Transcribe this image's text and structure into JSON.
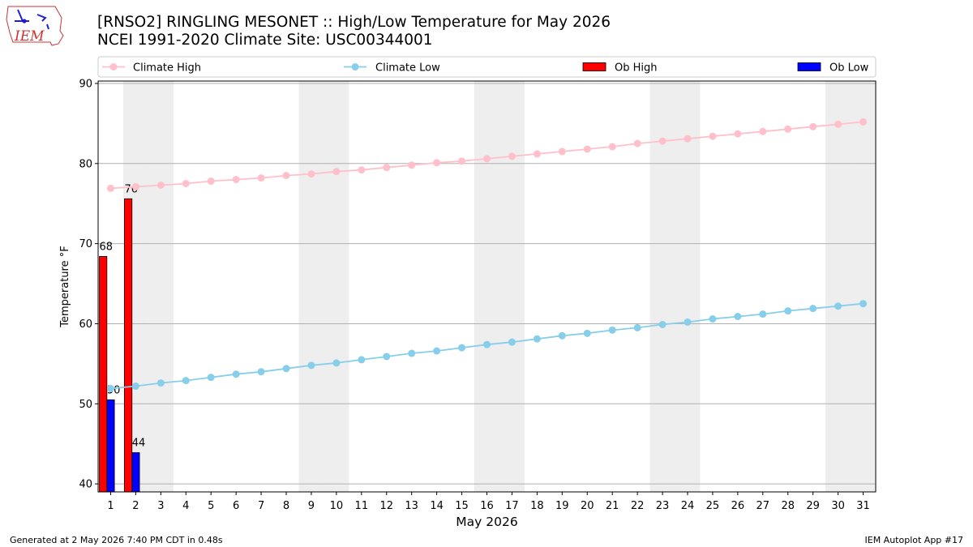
{
  "title": {
    "line1": "[RNSO2] RINGLING MESONET :: High/Low Temperature for May 2026",
    "line2": "NCEI 1991-2020 Climate Site: USC00344001"
  },
  "logo_text": "IEM",
  "footer": {
    "left": "Generated at 2 May 2026 7:40 PM CDT in 0.48s",
    "right": "IEM Autoplot App #17"
  },
  "colors": {
    "climate_high": "#ffc0cb",
    "climate_low": "#87ceeb",
    "ob_high": "#ff0000",
    "ob_low": "#0000ff",
    "weekend_band": "#eeeeee",
    "grid": "#b0b0b0"
  },
  "chart_data": {
    "type": "bar",
    "xlabel": "May 2026",
    "ylabel": "Temperature °F",
    "ylim": [
      39,
      90.3
    ],
    "xlim": [
      0.5,
      31.5
    ],
    "yticks": [
      40,
      50,
      60,
      70,
      80,
      90
    ],
    "xticks": [
      1,
      2,
      3,
      4,
      5,
      6,
      7,
      8,
      9,
      10,
      11,
      12,
      13,
      14,
      15,
      16,
      17,
      18,
      19,
      20,
      21,
      22,
      23,
      24,
      25,
      26,
      27,
      28,
      29,
      30,
      31
    ],
    "grid": "horizontal",
    "legend_position": "top",
    "weekend_days": [
      2,
      3,
      9,
      10,
      16,
      17,
      23,
      24,
      30,
      31
    ],
    "series": [
      {
        "name": "Climate High",
        "kind": "line",
        "x": [
          1,
          2,
          3,
          4,
          5,
          6,
          7,
          8,
          9,
          10,
          11,
          12,
          13,
          14,
          15,
          16,
          17,
          18,
          19,
          20,
          21,
          22,
          23,
          24,
          25,
          26,
          27,
          28,
          29,
          30,
          31
        ],
        "values": [
          76.9,
          77.1,
          77.3,
          77.5,
          77.8,
          78.0,
          78.2,
          78.5,
          78.7,
          79.0,
          79.2,
          79.5,
          79.8,
          80.1,
          80.3,
          80.6,
          80.9,
          81.2,
          81.5,
          81.8,
          82.1,
          82.5,
          82.8,
          83.1,
          83.4,
          83.7,
          84.0,
          84.3,
          84.6,
          84.9,
          85.2
        ]
      },
      {
        "name": "Climate Low",
        "kind": "line",
        "x": [
          1,
          2,
          3,
          4,
          5,
          6,
          7,
          8,
          9,
          10,
          11,
          12,
          13,
          14,
          15,
          16,
          17,
          18,
          19,
          20,
          21,
          22,
          23,
          24,
          25,
          26,
          27,
          28,
          29,
          30,
          31
        ],
        "values": [
          51.9,
          52.2,
          52.6,
          52.9,
          53.3,
          53.7,
          54.0,
          54.4,
          54.8,
          55.1,
          55.5,
          55.9,
          56.3,
          56.6,
          57.0,
          57.4,
          57.7,
          58.1,
          58.5,
          58.8,
          59.2,
          59.5,
          59.9,
          60.2,
          60.6,
          60.9,
          61.2,
          61.6,
          61.9,
          62.2,
          62.5
        ]
      },
      {
        "name": "Ob High",
        "kind": "bar",
        "x": [
          1,
          2
        ],
        "values": [
          68.4,
          75.6
        ],
        "labels": [
          "68",
          "76"
        ]
      },
      {
        "name": "Ob Low",
        "kind": "bar",
        "x": [
          1,
          2
        ],
        "values": [
          50.5,
          43.9
        ],
        "labels": [
          "50",
          "44"
        ]
      }
    ]
  }
}
